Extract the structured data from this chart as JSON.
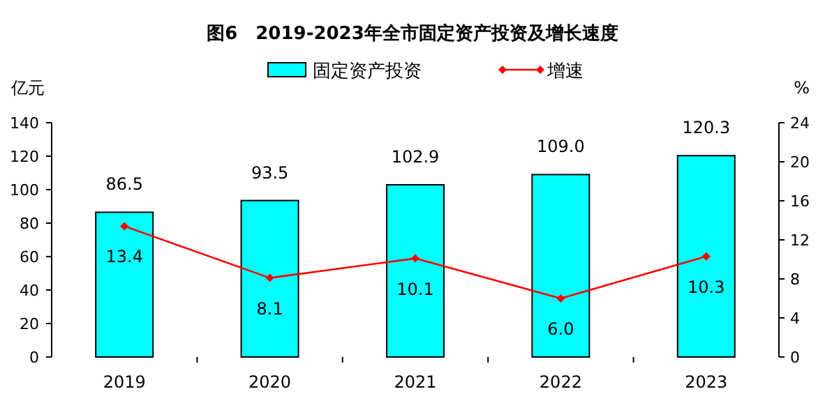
{
  "chart_data": {
    "type": "bar",
    "title": "图6　2019-2023年全市固定资产投资及增长速度",
    "ylabel": "亿元",
    "y2label": "%",
    "categories": [
      "2019",
      "2020",
      "2021",
      "2022",
      "2023"
    ],
    "series": [
      {
        "name": "固定资产投资",
        "color": "#00ffff",
        "values": [
          86.5,
          93.5,
          102.9,
          109.0,
          120.3
        ],
        "value_labels": [
          "86.5",
          "93.5",
          "102.9",
          "109.0",
          "120.3"
        ]
      },
      {
        "name": "增速",
        "type": "line",
        "axis": "y2",
        "color": "#ff0000",
        "marker": "diamond",
        "values": [
          13.4,
          8.1,
          10.1,
          6.0,
          10.3
        ],
        "value_labels": [
          "13.4",
          "8.1",
          "10.1",
          "6.0",
          "10.3"
        ]
      }
    ],
    "ylim": [
      0,
      140
    ],
    "yticks": [
      0,
      20,
      40,
      60,
      80,
      100,
      120,
      140
    ],
    "y2lim": [
      0,
      24
    ],
    "y2ticks": [
      0,
      4,
      8,
      12,
      16,
      20,
      24
    ],
    "legend": "top",
    "grid": false
  }
}
